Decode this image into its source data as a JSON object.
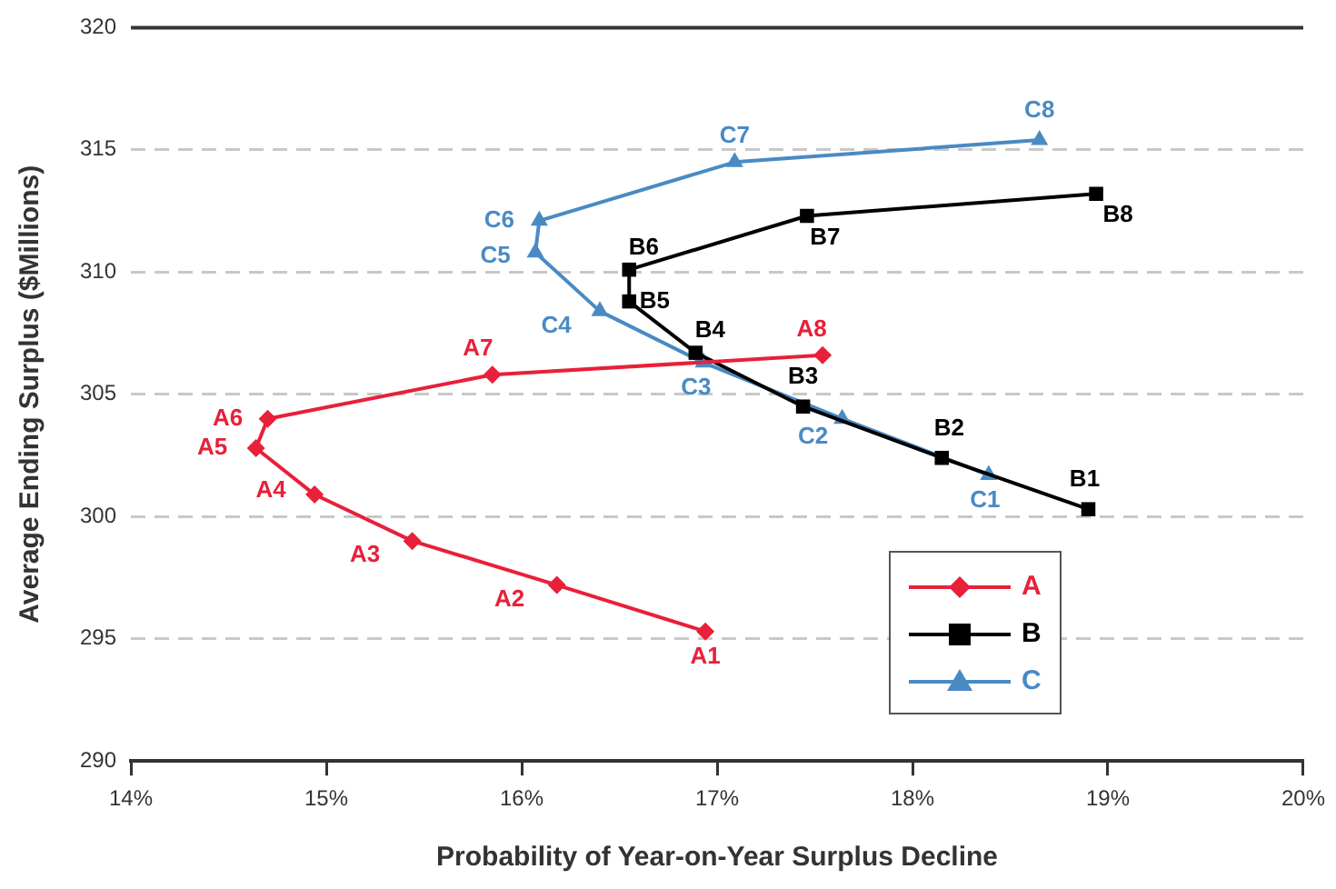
{
  "chart_data": {
    "type": "line",
    "xlabel": "Probability of Year-on-Year Surplus Decline",
    "ylabel": "Average Ending Surplus ($Millions)",
    "xlim": [
      14,
      20
    ],
    "xticks": [
      {
        "value": 14,
        "label": "14%"
      },
      {
        "value": 15,
        "label": "15%"
      },
      {
        "value": 16,
        "label": "16%"
      },
      {
        "value": 17,
        "label": "17%"
      },
      {
        "value": 18,
        "label": "18%"
      },
      {
        "value": 19,
        "label": "19%"
      },
      {
        "value": 20,
        "label": "20%"
      }
    ],
    "ylim": [
      290,
      320
    ],
    "yticks": [
      290,
      295,
      300,
      305,
      310,
      315,
      320
    ],
    "grid": "y",
    "legend": "bottom right",
    "line_style": "solid",
    "series": [
      {
        "name": "A",
        "color": "#e8203a",
        "marker": "diamond",
        "x": [
          16.94,
          16.18,
          15.44,
          14.94,
          14.64,
          14.7,
          15.85,
          17.54
        ],
        "values": [
          295.3,
          297.2,
          299.0,
          300.9,
          302.8,
          304.0,
          305.8,
          306.6
        ],
        "value_labels": [
          "A1",
          "A2",
          "A3",
          "A4",
          "A5",
          "A6",
          "A7",
          "A8"
        ]
      },
      {
        "name": "B",
        "color": "#000000",
        "marker": "square",
        "x": [
          18.9,
          18.15,
          17.44,
          16.89,
          16.55,
          16.55,
          17.46,
          18.94
        ],
        "values": [
          300.3,
          302.4,
          304.5,
          306.7,
          308.8,
          310.1,
          312.3,
          313.2
        ],
        "value_labels": [
          "B1",
          "B2",
          "B3",
          "B4",
          "B5",
          "B6",
          "B7",
          "B8"
        ]
      },
      {
        "name": "C",
        "color": "#4a8ac4",
        "marker": "triangle",
        "x": [
          18.39,
          17.64,
          16.93,
          16.4,
          16.07,
          16.09,
          17.09,
          18.65
        ],
        "values": [
          301.7,
          304.0,
          306.3,
          308.4,
          310.8,
          312.1,
          314.5,
          315.4
        ],
        "value_labels": [
          "C1",
          "C2",
          "C3",
          "C4",
          "C5",
          "C6",
          "C7",
          "C8"
        ]
      }
    ]
  }
}
